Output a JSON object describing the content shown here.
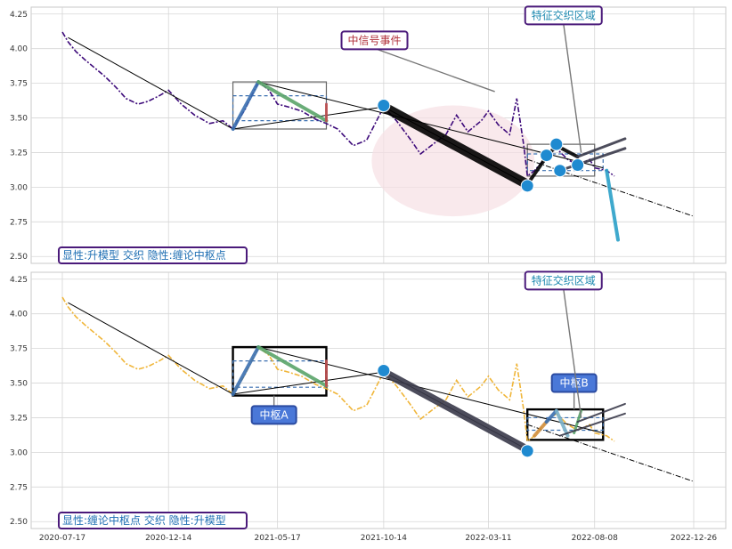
{
  "chart_data": [
    {
      "type": "line",
      "panel": "top",
      "title": "",
      "xlabel": "",
      "ylabel": "",
      "ylim": [
        2.45,
        4.3
      ],
      "yticks": [
        "2.50",
        "2.75",
        "3.00",
        "3.25",
        "3.50",
        "3.75",
        "4.00",
        "4.25"
      ],
      "yticks_values": [
        2.5,
        2.75,
        3.0,
        3.25,
        3.5,
        3.75,
        4.0,
        4.25
      ],
      "grid": true,
      "price_series_color": "#3d0a7a",
      "price_series": [
        [
          "2020-07-17",
          4.12
        ],
        [
          "2020-07-25",
          4.05
        ],
        [
          "2020-08-05",
          3.98
        ],
        [
          "2020-08-18",
          3.92
        ],
        [
          "2020-09-01",
          3.86
        ],
        [
          "2020-09-15",
          3.8
        ],
        [
          "2020-10-01",
          3.72
        ],
        [
          "2020-10-15",
          3.64
        ],
        [
          "2020-11-01",
          3.6
        ],
        [
          "2020-11-15",
          3.62
        ],
        [
          "2020-12-01",
          3.66
        ],
        [
          "2020-12-14",
          3.7
        ],
        [
          "2021-01-01",
          3.6
        ],
        [
          "2021-01-20",
          3.52
        ],
        [
          "2021-02-10",
          3.46
        ],
        [
          "2021-03-01",
          3.48
        ],
        [
          "2021-03-15",
          3.42
        ],
        [
          "2021-04-01",
          3.56
        ],
        [
          "2021-04-20",
          3.76
        ],
        [
          "2021-05-05",
          3.7
        ],
        [
          "2021-05-17",
          3.6
        ],
        [
          "2021-06-01",
          3.58
        ],
        [
          "2021-06-20",
          3.55
        ],
        [
          "2021-07-10",
          3.49
        ],
        [
          "2021-07-25",
          3.46
        ],
        [
          "2021-08-10",
          3.42
        ],
        [
          "2021-09-01",
          3.3
        ],
        [
          "2021-09-20",
          3.34
        ],
        [
          "2021-10-14",
          3.58
        ],
        [
          "2021-11-01",
          3.48
        ],
        [
          "2021-11-20",
          3.35
        ],
        [
          "2021-12-05",
          3.24
        ],
        [
          "2021-12-20",
          3.3
        ],
        [
          "2022-01-10",
          3.38
        ],
        [
          "2022-01-25",
          3.52
        ],
        [
          "2022-02-10",
          3.4
        ],
        [
          "2022-03-01",
          3.48
        ],
        [
          "2022-03-11",
          3.55
        ],
        [
          "2022-03-25",
          3.45
        ],
        [
          "2022-04-10",
          3.38
        ],
        [
          "2022-04-20",
          3.64
        ],
        [
          "2022-04-30",
          3.3
        ],
        [
          "2022-05-05",
          3.08
        ],
        [
          "2022-05-15",
          3.12
        ],
        [
          "2022-06-01",
          3.22
        ],
        [
          "2022-06-15",
          3.28
        ],
        [
          "2022-07-01",
          3.2
        ],
        [
          "2022-07-15",
          3.16
        ],
        [
          "2022-08-01",
          3.2
        ],
        [
          "2022-08-08",
          3.14
        ],
        [
          "2022-08-25",
          3.12
        ],
        [
          "2022-09-05",
          3.08
        ]
      ],
      "trend_lines": [
        {
          "color": "#000000",
          "points": [
            [
              "2020-07-25",
              4.08
            ],
            [
              "2021-03-15",
              3.42
            ]
          ]
        },
        {
          "color": "#000000",
          "points": [
            [
              "2021-03-15",
              3.42
            ],
            [
              "2021-10-14",
              3.58
            ]
          ]
        },
        {
          "color": "#000000",
          "points": [
            [
              "2021-10-14",
              3.58
            ],
            [
              "2022-05-05",
              3.02
            ]
          ]
        },
        {
          "color": "#000000",
          "points": [
            [
              "2021-04-20",
              3.76
            ],
            [
              "2022-08-20",
              3.14
            ]
          ]
        }
      ],
      "dash_dot_lines": [
        {
          "color": "#000000",
          "points": [
            [
              "2022-05-05",
              3.2
            ],
            [
              "2022-12-26",
              2.79
            ]
          ]
        }
      ],
      "thick_segments": [
        {
          "color": "#3a6fb0",
          "width": 4,
          "points": [
            [
              "2021-03-15",
              3.42
            ],
            [
              "2021-04-20",
              3.76
            ]
          ]
        },
        {
          "color": "#5aa469",
          "width": 4,
          "points": [
            [
              "2021-04-20",
              3.76
            ],
            [
              "2021-07-25",
              3.48
            ]
          ]
        },
        {
          "color": "#c05050",
          "width": 3,
          "points": [
            [
              "2021-07-25",
              3.48
            ],
            [
              "2021-07-25",
              3.6
            ]
          ]
        },
        {
          "color": "#000000",
          "width": 11,
          "points": [
            [
              "2021-10-14",
              3.58
            ],
            [
              "2022-05-05",
              3.02
            ]
          ]
        },
        {
          "color": "#000000",
          "width": 4,
          "points": [
            [
              "2022-05-05",
              3.02
            ],
            [
              "2022-06-01",
              3.22
            ]
          ]
        },
        {
          "color": "#000000",
          "width": 4,
          "points": [
            [
              "2022-06-01",
              3.22
            ],
            [
              "2022-06-15",
              3.3
            ]
          ]
        },
        {
          "color": "#000000",
          "width": 4,
          "points": [
            [
              "2022-06-15",
              3.3
            ],
            [
              "2022-07-15",
              3.22
            ]
          ]
        },
        {
          "color": "#3a3a4a",
          "width": 3,
          "points": [
            [
              "2022-07-15",
              3.22
            ],
            [
              "2022-09-20",
              3.35
            ]
          ]
        },
        {
          "color": "#3a3a4a",
          "width": 3,
          "points": [
            [
              "2022-06-20",
              3.12
            ],
            [
              "2022-09-20",
              3.28
            ]
          ]
        },
        {
          "color": "#2aa0c8",
          "width": 4,
          "points": [
            [
              "2022-08-25",
              3.12
            ],
            [
              "2022-09-10",
              2.62
            ]
          ]
        }
      ],
      "zones": [
        {
          "type": "box",
          "color": "#666666",
          "x0": "2021-03-15",
          "x1": "2021-07-25",
          "y0": 3.42,
          "y1": 3.76
        },
        {
          "type": "box_dashed",
          "color": "#3a6fb0",
          "x0": "2021-03-15",
          "x1": "2021-07-25",
          "y0": 3.48,
          "y1": 3.66
        },
        {
          "type": "box",
          "color": "#666666",
          "x0": "2022-05-05",
          "x1": "2022-08-08",
          "y0": 3.08,
          "y1": 3.31
        },
        {
          "type": "box_dashed",
          "color": "#3a6fb0",
          "x0": "2022-05-05",
          "x1": "2022-08-20",
          "y0": 3.12,
          "y1": 3.24
        }
      ],
      "highlight_ellipse": {
        "cx": "2022-01-20",
        "cy": 3.19,
        "rx_days": 115,
        "ry": 0.4,
        "color": "#f6dfe4"
      },
      "points": [
        {
          "x": "2021-10-14",
          "y": 3.59
        },
        {
          "x": "2022-05-05",
          "y": 3.01
        },
        {
          "x": "2022-06-01",
          "y": 3.23
        },
        {
          "x": "2022-06-15",
          "y": 3.31
        },
        {
          "x": "2022-06-20",
          "y": 3.12
        },
        {
          "x": "2022-07-15",
          "y": 3.16
        }
      ],
      "annotations": [
        {
          "text": "中信号事件",
          "color": "#b0303a",
          "x": "2021-10-01",
          "y": 4.06,
          "arrow_to": [
            "2022-03-20",
            3.69
          ]
        },
        {
          "text": "特征交织区域",
          "color": "#1f8ab0",
          "x": "2022-06-25",
          "y": 4.24,
          "arrow_to": [
            "2022-07-20",
            3.25
          ]
        }
      ],
      "corner_label": "显性:升模型 交织 隐性:缠论中枢点"
    },
    {
      "type": "line",
      "panel": "bottom",
      "title": "",
      "xlabel": "",
      "ylabel": "",
      "ylim": [
        2.45,
        4.3
      ],
      "yticks": [
        "2.50",
        "2.75",
        "3.00",
        "3.25",
        "3.50",
        "3.75",
        "4.00",
        "4.25"
      ],
      "yticks_values": [
        2.5,
        2.75,
        3.0,
        3.25,
        3.5,
        3.75,
        4.0,
        4.25
      ],
      "xticks": [
        "2020-07-17",
        "2020-12-14",
        "2021-05-17",
        "2021-10-14",
        "2022-03-11",
        "2022-08-08",
        "2022-12-26"
      ],
      "grid": true,
      "price_series_color": "#f0b63a",
      "price_series": [
        [
          "2020-07-17",
          4.12
        ],
        [
          "2020-07-25",
          4.05
        ],
        [
          "2020-08-05",
          3.98
        ],
        [
          "2020-08-18",
          3.92
        ],
        [
          "2020-09-01",
          3.86
        ],
        [
          "2020-09-15",
          3.8
        ],
        [
          "2020-10-01",
          3.72
        ],
        [
          "2020-10-15",
          3.64
        ],
        [
          "2020-11-01",
          3.6
        ],
        [
          "2020-11-15",
          3.62
        ],
        [
          "2020-12-01",
          3.66
        ],
        [
          "2020-12-14",
          3.7
        ],
        [
          "2021-01-01",
          3.6
        ],
        [
          "2021-01-20",
          3.52
        ],
        [
          "2021-02-10",
          3.46
        ],
        [
          "2021-03-01",
          3.48
        ],
        [
          "2021-03-15",
          3.42
        ],
        [
          "2021-04-01",
          3.56
        ],
        [
          "2021-04-20",
          3.76
        ],
        [
          "2021-05-05",
          3.7
        ],
        [
          "2021-05-17",
          3.6
        ],
        [
          "2021-06-01",
          3.58
        ],
        [
          "2021-06-20",
          3.55
        ],
        [
          "2021-07-10",
          3.49
        ],
        [
          "2021-07-25",
          3.46
        ],
        [
          "2021-08-10",
          3.42
        ],
        [
          "2021-09-01",
          3.3
        ],
        [
          "2021-09-20",
          3.34
        ],
        [
          "2021-10-14",
          3.58
        ],
        [
          "2021-11-01",
          3.48
        ],
        [
          "2021-11-20",
          3.35
        ],
        [
          "2021-12-05",
          3.24
        ],
        [
          "2021-12-20",
          3.3
        ],
        [
          "2022-01-10",
          3.38
        ],
        [
          "2022-01-25",
          3.52
        ],
        [
          "2022-02-10",
          3.4
        ],
        [
          "2022-03-01",
          3.48
        ],
        [
          "2022-03-11",
          3.55
        ],
        [
          "2022-03-25",
          3.45
        ],
        [
          "2022-04-10",
          3.38
        ],
        [
          "2022-04-20",
          3.64
        ],
        [
          "2022-04-30",
          3.3
        ],
        [
          "2022-05-05",
          3.08
        ],
        [
          "2022-05-15",
          3.12
        ],
        [
          "2022-06-01",
          3.22
        ],
        [
          "2022-06-15",
          3.28
        ],
        [
          "2022-07-01",
          3.2
        ],
        [
          "2022-07-15",
          3.16
        ],
        [
          "2022-08-01",
          3.2
        ],
        [
          "2022-08-08",
          3.14
        ],
        [
          "2022-08-25",
          3.12
        ],
        [
          "2022-09-05",
          3.08
        ]
      ],
      "trend_lines": [
        {
          "color": "#000000",
          "points": [
            [
              "2020-07-25",
              4.08
            ],
            [
              "2021-03-15",
              3.42
            ]
          ]
        },
        {
          "color": "#000000",
          "points": [
            [
              "2021-03-15",
              3.42
            ],
            [
              "2021-10-14",
              3.58
            ]
          ]
        },
        {
          "color": "#000000",
          "points": [
            [
              "2021-10-14",
              3.58
            ],
            [
              "2022-05-05",
              3.02
            ]
          ]
        },
        {
          "color": "#000000",
          "points": [
            [
              "2021-04-20",
              3.76
            ],
            [
              "2022-08-20",
              3.14
            ]
          ]
        }
      ],
      "dash_dot_lines": [
        {
          "color": "#000000",
          "points": [
            [
              "2022-05-05",
              3.2
            ],
            [
              "2022-12-26",
              2.79
            ]
          ]
        }
      ],
      "thick_segments": [
        {
          "color": "#3a6fb0",
          "width": 4,
          "points": [
            [
              "2021-03-15",
              3.42
            ],
            [
              "2021-04-20",
              3.76
            ]
          ]
        },
        {
          "color": "#5aa469",
          "width": 4,
          "points": [
            [
              "2021-04-20",
              3.76
            ],
            [
              "2021-07-25",
              3.48
            ]
          ]
        },
        {
          "color": "#c05050",
          "width": 3,
          "points": [
            [
              "2021-07-25",
              3.48
            ],
            [
              "2021-07-25",
              3.66
            ]
          ]
        },
        {
          "color": "#3a3a4a",
          "width": 9,
          "points": [
            [
              "2021-10-14",
              3.58
            ],
            [
              "2022-05-05",
              3.02
            ]
          ]
        },
        {
          "color": "#d09040",
          "width": 4,
          "points": [
            [
              "2022-05-15",
              3.12
            ],
            [
              "2022-06-01",
              3.22
            ]
          ]
        },
        {
          "color": "#3a6fb0",
          "width": 4,
          "points": [
            [
              "2022-06-01",
              3.22
            ],
            [
              "2022-06-15",
              3.3
            ]
          ]
        },
        {
          "color": "#7ab0c8",
          "width": 4,
          "points": [
            [
              "2022-06-15",
              3.3
            ],
            [
              "2022-07-01",
              3.12
            ]
          ]
        },
        {
          "color": "#5aa469",
          "width": 3,
          "points": [
            [
              "2022-07-10",
              3.14
            ],
            [
              "2022-07-20",
              3.3
            ]
          ]
        },
        {
          "color": "#3a3a4a",
          "width": 2,
          "points": [
            [
              "2022-07-15",
              3.22
            ],
            [
              "2022-09-20",
              3.35
            ]
          ]
        },
        {
          "color": "#3a3a4a",
          "width": 2,
          "points": [
            [
              "2022-06-20",
              3.12
            ],
            [
              "2022-09-20",
              3.28
            ]
          ]
        }
      ],
      "zones": [
        {
          "type": "box",
          "color": "#000000",
          "x0": "2021-03-15",
          "x1": "2021-07-25",
          "y0": 3.41,
          "y1": 3.76
        },
        {
          "type": "box_dashed",
          "color": "#3a6fb0",
          "x0": "2021-03-15",
          "x1": "2021-07-25",
          "y0": 3.47,
          "y1": 3.66
        },
        {
          "type": "box",
          "color": "#000000",
          "x0": "2022-05-05",
          "x1": "2022-08-20",
          "y0": 3.09,
          "y1": 3.31
        },
        {
          "type": "box_dashed",
          "color": "#3a6fb0",
          "x0": "2022-05-05",
          "x1": "2022-08-20",
          "y0": 3.16,
          "y1": 3.25
        }
      ],
      "points": [
        {
          "x": "2021-10-14",
          "y": 3.59
        },
        {
          "x": "2022-05-05",
          "y": 3.01
        }
      ],
      "annotations": [
        {
          "text": "中枢A",
          "color": "#ffffff",
          "bg": "#4a78d8",
          "x": "2021-05-12",
          "y": 3.27,
          "arrow_to": [
            "2021-05-12",
            3.41
          ]
        },
        {
          "text": "中枢B",
          "color": "#ffffff",
          "bg": "#4a78d8",
          "x": "2022-07-10",
          "y": 3.5,
          "arrow_to": [
            "2022-07-10",
            3.31
          ]
        },
        {
          "text": "特征交织区域",
          "color": "#1f8ab0",
          "x": "2022-06-25",
          "y": 4.24,
          "arrow_to": [
            "2022-07-20",
            3.25
          ]
        }
      ],
      "corner_label": "显性:缠论中枢点 交织 隐性:升模型"
    }
  ]
}
